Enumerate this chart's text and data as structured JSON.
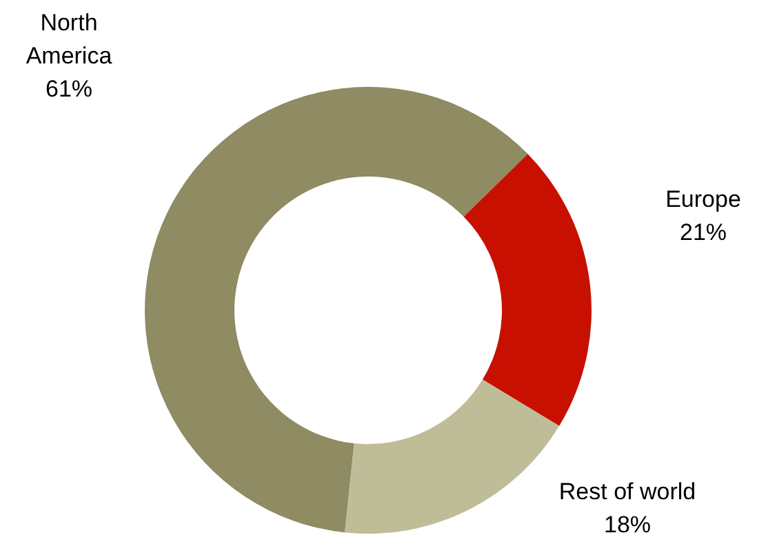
{
  "chart_data": {
    "type": "donut",
    "categories": [
      "North America",
      "Europe",
      "Rest of world"
    ],
    "values": [
      61,
      21,
      18
    ],
    "colors": [
      "#8f8b62",
      "#c81000",
      "#bfbc98"
    ],
    "value_labels": [
      "61%",
      "21%",
      "18%"
    ],
    "legend": false
  }
}
